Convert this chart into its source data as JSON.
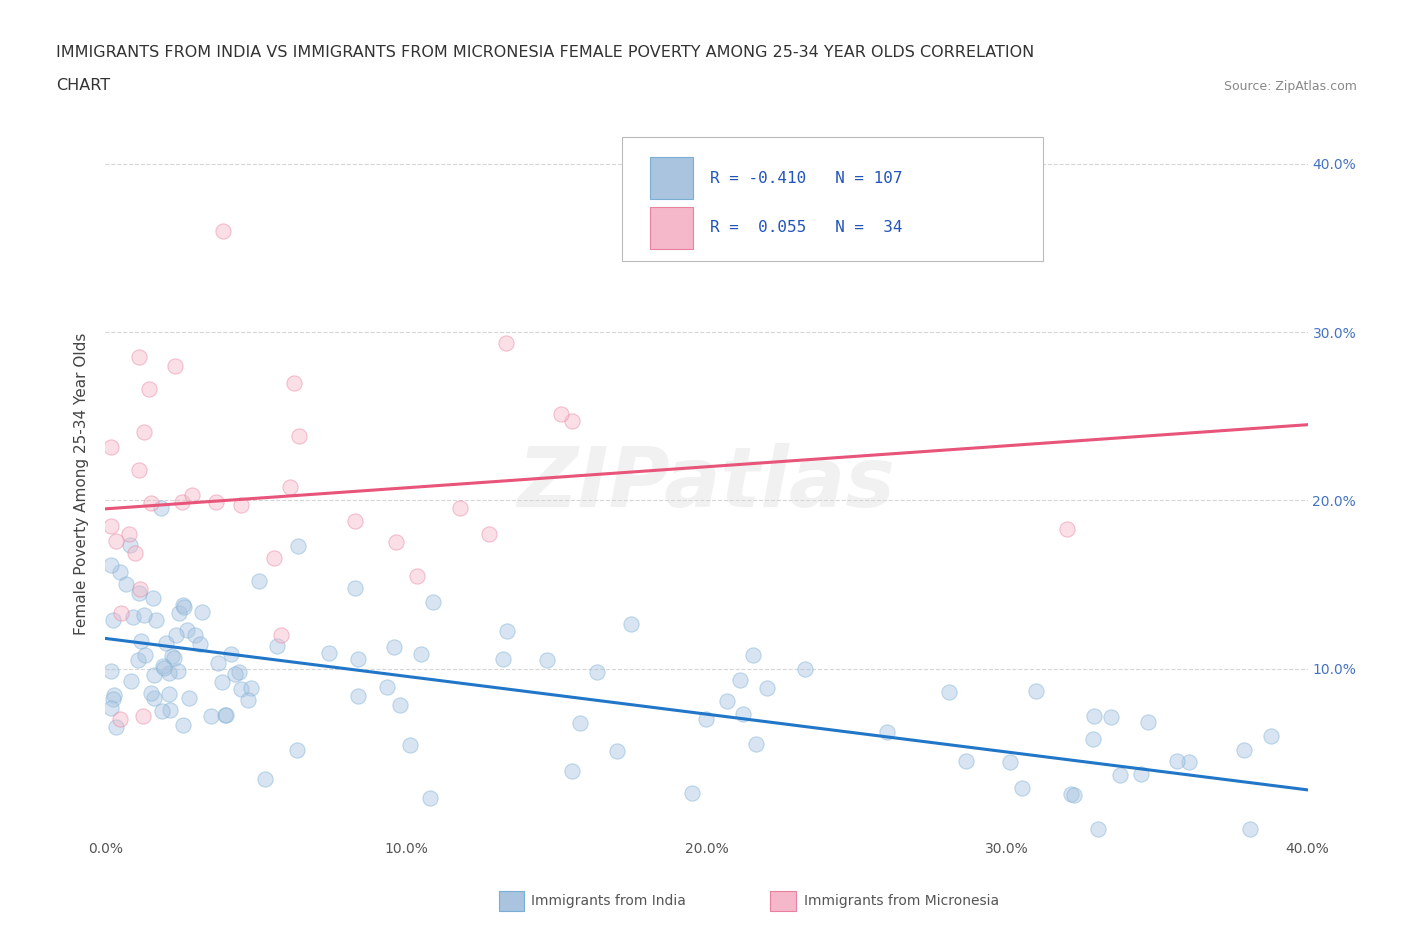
{
  "title_line1": "IMMIGRANTS FROM INDIA VS IMMIGRANTS FROM MICRONESIA FEMALE POVERTY AMONG 25-34 YEAR OLDS CORRELATION",
  "title_line2": "CHART",
  "source_text": "Source: ZipAtlas.com",
  "ylabel": "Female Poverty Among 25-34 Year Olds",
  "xlim": [
    0.0,
    0.4
  ],
  "ylim": [
    0.0,
    0.42
  ],
  "xtick_labels": [
    "0.0%",
    "",
    "10.0%",
    "",
    "20.0%",
    "",
    "30.0%",
    "",
    "40.0%"
  ],
  "xtick_values": [
    0.0,
    0.05,
    0.1,
    0.15,
    0.2,
    0.25,
    0.3,
    0.35,
    0.4
  ],
  "ytick_values": [
    0.1,
    0.2,
    0.3,
    0.4
  ],
  "right_ytick_labels": [
    "10.0%",
    "20.0%",
    "30.0%",
    "40.0%"
  ],
  "india_color_fill": "#aac4e0",
  "india_color_edge": "#7aafd4",
  "micronesia_color_fill": "#f5b8ca",
  "micronesia_color_edge": "#e8819e",
  "india_R": -0.41,
  "india_N": 107,
  "micronesia_R": 0.055,
  "micronesia_N": 34,
  "india_trendline_start_y": 0.118,
  "india_trendline_end_y": 0.028,
  "micronesia_trendline_start_y": 0.195,
  "micronesia_trendline_end_y": 0.245,
  "india_line_color": "#2176c7",
  "micronesia_line_color": "#e8547a",
  "watermark": "ZIPatlas",
  "grid_color": "#cccccc",
  "background_color": "#ffffff",
  "scatter_size": 120,
  "scatter_alpha": 0.45,
  "title_fontsize": 11.5,
  "axis_label_fontsize": 11,
  "tick_fontsize": 10,
  "right_tick_color": "#4472C4",
  "legend_india_label": "R = -0.410   N = 107",
  "legend_micro_label": "R =  0.055   N =  34",
  "bottom_legend_india": "Immigrants from India",
  "bottom_legend_micro": "Immigrants from Micronesia"
}
